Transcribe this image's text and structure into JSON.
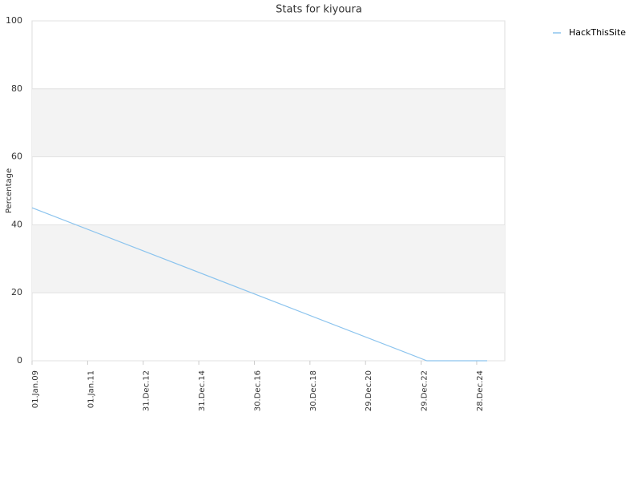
{
  "chart_data": {
    "type": "line",
    "title": "Stats for kiyoura",
    "y_label": "Percentage",
    "x": [
      "2009-01-01",
      "2023-03-15",
      "2025-05-15"
    ],
    "series": [
      {
        "name": "HackThisSite",
        "color": "#8cc4ee",
        "values": [
          45,
          0,
          0
        ]
      }
    ],
    "xlim": [
      "2009-01-01",
      "2026-01-01"
    ],
    "xticks": [
      {
        "value": "2009-01-01",
        "label": "01.Jan.09"
      },
      {
        "value": "2011-01-01",
        "label": "01.Jan.11"
      },
      {
        "value": "2012-12-31",
        "label": "31.Dec.12"
      },
      {
        "value": "2014-12-31",
        "label": "31.Dec.14"
      },
      {
        "value": "2016-12-30",
        "label": "30.Dec.16"
      },
      {
        "value": "2018-12-30",
        "label": "30.Dec.18"
      },
      {
        "value": "2020-12-29",
        "label": "29.Dec.20"
      },
      {
        "value": "2022-12-29",
        "label": "29.Dec.22"
      },
      {
        "value": "2024-12-28",
        "label": "28.Dec.24"
      }
    ],
    "ylim": [
      0,
      100
    ],
    "yticks": [
      0,
      20,
      40,
      60,
      80,
      100
    ],
    "grid": true,
    "alternate_bands": true,
    "legend": "top-right"
  }
}
